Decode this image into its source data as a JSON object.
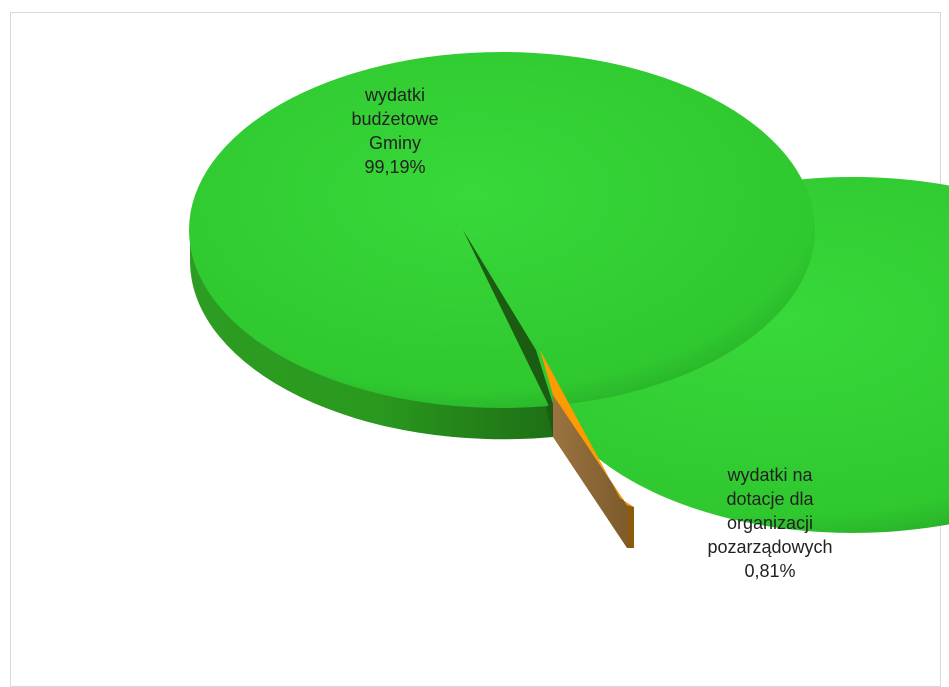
{
  "chart_data": {
    "type": "pie",
    "style": "3d-exploded",
    "title": "",
    "slices": [
      {
        "name": "wydatki budżetowe Gminy",
        "value": 99.19,
        "percent_label": "99,19%",
        "color": "#33cc33"
      },
      {
        "name": "wydatki na dotacje dla organizacji pozarządowych",
        "value": 0.81,
        "percent_label": "0,81%",
        "color": "#ff9900"
      }
    ],
    "legend": "none"
  },
  "labels": {
    "slice_0": "wydatki\nbudżetowe\nGminy\n99,19%",
    "slice_1": "wydatki na\ndotacje dla\norganizacji\npozarządowych\n0,81%"
  }
}
